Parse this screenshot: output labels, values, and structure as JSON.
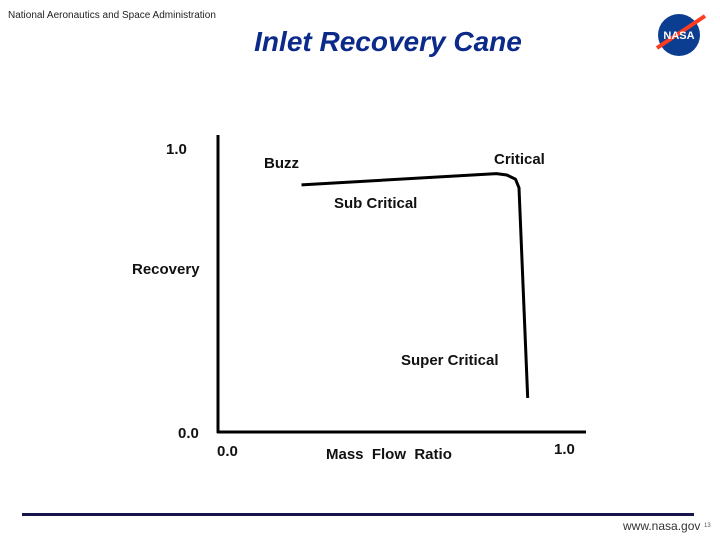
{
  "header": {
    "agency": "National Aeronautics and Space Administration",
    "title": "Inlet  Recovery Cane",
    "logo_text": "NASA"
  },
  "footer": {
    "url": "www.nasa.gov",
    "page": "13"
  },
  "colors": {
    "title": "#0b2a8a",
    "rule": "#14144a",
    "logo_blue": "#0b3d91",
    "logo_red": "#fc3d21"
  },
  "chart_data": {
    "type": "line",
    "title": "Inlet  Recovery Cane",
    "xlabel": "Mass  Flow  Ratio",
    "ylabel": "Recovery",
    "xlim": [
      0,
      1.05
    ],
    "ylim": [
      0,
      1.05
    ],
    "x_ticks": [
      "0.0",
      "1.0"
    ],
    "y_ticks": [
      "0.0",
      "1.0"
    ],
    "grid": false,
    "series": [
      {
        "x": [
          0.24,
          0.8,
          0.83,
          0.855,
          0.865,
          0.89
        ],
        "y": [
          0.87,
          0.91,
          0.905,
          0.89,
          0.86,
          0.12
        ]
      }
    ],
    "annotations": [
      "Buzz",
      "Critical",
      "Sub Critical",
      "Super Critical"
    ]
  }
}
